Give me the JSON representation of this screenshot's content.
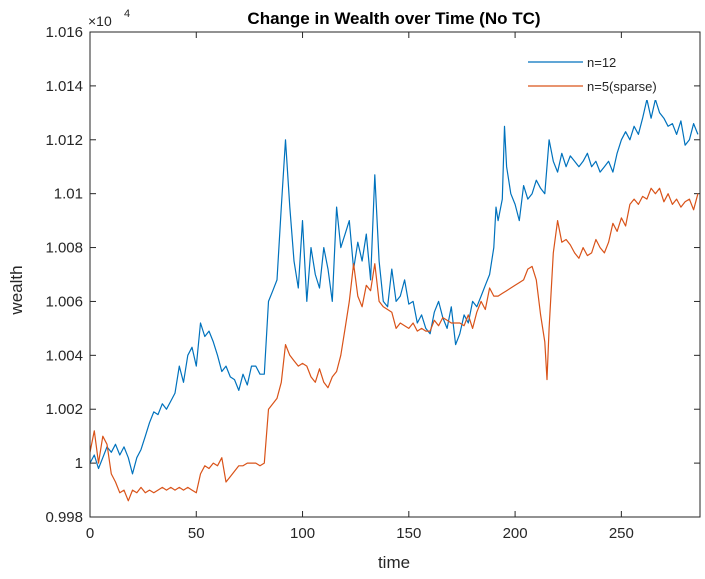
{
  "chart_data": {
    "type": "line",
    "title": "Change in Wealth over Time (No TC)",
    "xlabel": "time",
    "ylabel": "wealth",
    "y_exponent_label": "×10",
    "y_exponent_power": "4",
    "xlim": [
      0,
      287
    ],
    "ylim": [
      9980,
      10160
    ],
    "x_ticks": [
      0,
      50,
      100,
      150,
      200,
      250
    ],
    "x_tick_labels": [
      "0",
      "50",
      "100",
      "150",
      "200",
      "250"
    ],
    "y_ticks": [
      9980,
      10000,
      10020,
      10040,
      10060,
      10080,
      10100,
      10120,
      10140,
      10160
    ],
    "y_tick_labels": [
      "0.998",
      "1",
      "1.002",
      "1.004",
      "1.006",
      "1.008",
      "1.01",
      "1.012",
      "1.014",
      "1.016"
    ],
    "grid": false,
    "legend_position": "top-right",
    "series": [
      {
        "name": "n=12",
        "color": "#0072BD",
        "points": [
          [
            0,
            10000
          ],
          [
            2,
            10003
          ],
          [
            4,
            9998
          ],
          [
            6,
            10002
          ],
          [
            8,
            10006
          ],
          [
            10,
            10004
          ],
          [
            12,
            10007
          ],
          [
            14,
            10003
          ],
          [
            16,
            10006
          ],
          [
            18,
            10002
          ],
          [
            20,
            9996
          ],
          [
            22,
            10002
          ],
          [
            24,
            10005
          ],
          [
            26,
            10010
          ],
          [
            28,
            10015
          ],
          [
            30,
            10019
          ],
          [
            32,
            10018
          ],
          [
            34,
            10022
          ],
          [
            36,
            10020
          ],
          [
            38,
            10023
          ],
          [
            40,
            10026
          ],
          [
            42,
            10036
          ],
          [
            44,
            10030
          ],
          [
            46,
            10040
          ],
          [
            48,
            10043
          ],
          [
            50,
            10036
          ],
          [
            52,
            10052
          ],
          [
            54,
            10047
          ],
          [
            56,
            10049
          ],
          [
            58,
            10045
          ],
          [
            60,
            10040
          ],
          [
            62,
            10034
          ],
          [
            64,
            10036
          ],
          [
            66,
            10032
          ],
          [
            68,
            10031
          ],
          [
            70,
            10027
          ],
          [
            72,
            10033
          ],
          [
            74,
            10029
          ],
          [
            76,
            10036
          ],
          [
            78,
            10036
          ],
          [
            80,
            10033
          ],
          [
            82,
            10033
          ],
          [
            84,
            10060
          ],
          [
            86,
            10064
          ],
          [
            88,
            10068
          ],
          [
            90,
            10095
          ],
          [
            92,
            10120
          ],
          [
            94,
            10095
          ],
          [
            96,
            10075
          ],
          [
            98,
            10065
          ],
          [
            100,
            10090
          ],
          [
            102,
            10060
          ],
          [
            104,
            10080
          ],
          [
            106,
            10070
          ],
          [
            108,
            10065
          ],
          [
            110,
            10080
          ],
          [
            112,
            10072
          ],
          [
            114,
            10060
          ],
          [
            116,
            10095
          ],
          [
            118,
            10080
          ],
          [
            120,
            10085
          ],
          [
            122,
            10090
          ],
          [
            124,
            10072
          ],
          [
            126,
            10082
          ],
          [
            128,
            10075
          ],
          [
            130,
            10085
          ],
          [
            132,
            10068
          ],
          [
            134,
            10107
          ],
          [
            136,
            10075
          ],
          [
            138,
            10060
          ],
          [
            140,
            10058
          ],
          [
            142,
            10072
          ],
          [
            144,
            10060
          ],
          [
            146,
            10062
          ],
          [
            148,
            10068
          ],
          [
            150,
            10059
          ],
          [
            152,
            10060
          ],
          [
            154,
            10052
          ],
          [
            156,
            10055
          ],
          [
            158,
            10050
          ],
          [
            160,
            10048
          ],
          [
            162,
            10056
          ],
          [
            164,
            10060
          ],
          [
            166,
            10054
          ],
          [
            168,
            10050
          ],
          [
            170,
            10058
          ],
          [
            172,
            10044
          ],
          [
            174,
            10048
          ],
          [
            176,
            10055
          ],
          [
            178,
            10052
          ],
          [
            180,
            10060
          ],
          [
            182,
            10058
          ],
          [
            184,
            10062
          ],
          [
            186,
            10066
          ],
          [
            188,
            10070
          ],
          [
            190,
            10080
          ],
          [
            191,
            10095
          ],
          [
            192,
            10090
          ],
          [
            194,
            10098
          ],
          [
            195,
            10125
          ],
          [
            196,
            10110
          ],
          [
            198,
            10100
          ],
          [
            200,
            10096
          ],
          [
            202,
            10090
          ],
          [
            204,
            10103
          ],
          [
            206,
            10098
          ],
          [
            208,
            10100
          ],
          [
            210,
            10105
          ],
          [
            212,
            10102
          ],
          [
            214,
            10100
          ],
          [
            216,
            10120
          ],
          [
            218,
            10112
          ],
          [
            220,
            10108
          ],
          [
            222,
            10115
          ],
          [
            224,
            10110
          ],
          [
            226,
            10114
          ],
          [
            228,
            10112
          ],
          [
            230,
            10110
          ],
          [
            232,
            10112
          ],
          [
            234,
            10115
          ],
          [
            236,
            10110
          ],
          [
            238,
            10112
          ],
          [
            240,
            10108
          ],
          [
            242,
            10110
          ],
          [
            244,
            10112
          ],
          [
            246,
            10108
          ],
          [
            248,
            10115
          ],
          [
            250,
            10120
          ],
          [
            252,
            10123
          ],
          [
            254,
            10120
          ],
          [
            256,
            10125
          ],
          [
            258,
            10122
          ],
          [
            260,
            10128
          ],
          [
            262,
            10135
          ],
          [
            264,
            10128
          ],
          [
            266,
            10135
          ],
          [
            268,
            10130
          ],
          [
            270,
            10128
          ],
          [
            272,
            10125
          ],
          [
            274,
            10126
          ],
          [
            276,
            10122
          ],
          [
            278,
            10127
          ],
          [
            280,
            10118
          ],
          [
            282,
            10120
          ],
          [
            284,
            10126
          ],
          [
            286,
            10122
          ]
        ]
      },
      {
        "name": "n=5(sparse)",
        "color": "#D95319",
        "points": [
          [
            0,
            10004
          ],
          [
            2,
            10012
          ],
          [
            4,
            10000
          ],
          [
            6,
            10010
          ],
          [
            8,
            10007
          ],
          [
            10,
            9996
          ],
          [
            12,
            9993
          ],
          [
            14,
            9989
          ],
          [
            16,
            9990
          ],
          [
            18,
            9986
          ],
          [
            20,
            9990
          ],
          [
            22,
            9989
          ],
          [
            24,
            9991
          ],
          [
            26,
            9989
          ],
          [
            28,
            9990
          ],
          [
            30,
            9989
          ],
          [
            32,
            9990
          ],
          [
            34,
            9991
          ],
          [
            36,
            9990
          ],
          [
            38,
            9991
          ],
          [
            40,
            9990
          ],
          [
            42,
            9991
          ],
          [
            44,
            9990
          ],
          [
            46,
            9991
          ],
          [
            48,
            9990
          ],
          [
            50,
            9989
          ],
          [
            52,
            9996
          ],
          [
            54,
            9999
          ],
          [
            56,
            9998
          ],
          [
            58,
            10000
          ],
          [
            60,
            9999
          ],
          [
            62,
            10002
          ],
          [
            64,
            9993
          ],
          [
            66,
            9995
          ],
          [
            68,
            9997
          ],
          [
            70,
            9999
          ],
          [
            72,
            9999
          ],
          [
            74,
            10000
          ],
          [
            76,
            10000
          ],
          [
            78,
            10000
          ],
          [
            80,
            9999
          ],
          [
            82,
            10000
          ],
          [
            84,
            10020
          ],
          [
            86,
            10022
          ],
          [
            88,
            10024
          ],
          [
            90,
            10030
          ],
          [
            92,
            10044
          ],
          [
            94,
            10040
          ],
          [
            96,
            10038
          ],
          [
            98,
            10036
          ],
          [
            100,
            10037
          ],
          [
            102,
            10036
          ],
          [
            104,
            10032
          ],
          [
            106,
            10030
          ],
          [
            108,
            10035
          ],
          [
            110,
            10030
          ],
          [
            112,
            10028
          ],
          [
            114,
            10032
          ],
          [
            116,
            10034
          ],
          [
            118,
            10040
          ],
          [
            120,
            10050
          ],
          [
            122,
            10060
          ],
          [
            124,
            10074
          ],
          [
            126,
            10062
          ],
          [
            128,
            10058
          ],
          [
            130,
            10066
          ],
          [
            132,
            10064
          ],
          [
            134,
            10074
          ],
          [
            136,
            10060
          ],
          [
            138,
            10058
          ],
          [
            140,
            10057
          ],
          [
            142,
            10056
          ],
          [
            144,
            10050
          ],
          [
            146,
            10052
          ],
          [
            148,
            10051
          ],
          [
            150,
            10050
          ],
          [
            152,
            10052
          ],
          [
            154,
            10049
          ],
          [
            156,
            10050
          ],
          [
            158,
            10049
          ],
          [
            160,
            10049
          ],
          [
            162,
            10053
          ],
          [
            164,
            10051
          ],
          [
            166,
            10054
          ],
          [
            168,
            10053
          ],
          [
            170,
            10052
          ],
          [
            172,
            10052
          ],
          [
            174,
            10052
          ],
          [
            176,
            10051
          ],
          [
            178,
            10055
          ],
          [
            180,
            10050
          ],
          [
            182,
            10056
          ],
          [
            184,
            10060
          ],
          [
            186,
            10057
          ],
          [
            188,
            10065
          ],
          [
            190,
            10062
          ],
          [
            192,
            10062
          ],
          [
            194,
            10063
          ],
          [
            196,
            10064
          ],
          [
            198,
            10065
          ],
          [
            200,
            10066
          ],
          [
            202,
            10067
          ],
          [
            204,
            10068
          ],
          [
            206,
            10072
          ],
          [
            208,
            10073
          ],
          [
            210,
            10068
          ],
          [
            212,
            10055
          ],
          [
            214,
            10045
          ],
          [
            215,
            10031
          ],
          [
            216,
            10050
          ],
          [
            218,
            10078
          ],
          [
            220,
            10090
          ],
          [
            222,
            10082
          ],
          [
            224,
            10083
          ],
          [
            226,
            10081
          ],
          [
            228,
            10078
          ],
          [
            230,
            10076
          ],
          [
            232,
            10080
          ],
          [
            234,
            10077
          ],
          [
            236,
            10078
          ],
          [
            238,
            10083
          ],
          [
            240,
            10080
          ],
          [
            242,
            10078
          ],
          [
            244,
            10082
          ],
          [
            246,
            10089
          ],
          [
            248,
            10086
          ],
          [
            250,
            10091
          ],
          [
            252,
            10088
          ],
          [
            254,
            10096
          ],
          [
            256,
            10098
          ],
          [
            258,
            10096
          ],
          [
            260,
            10099
          ],
          [
            262,
            10098
          ],
          [
            264,
            10102
          ],
          [
            266,
            10100
          ],
          [
            268,
            10102
          ],
          [
            270,
            10097
          ],
          [
            272,
            10100
          ],
          [
            274,
            10096
          ],
          [
            276,
            10098
          ],
          [
            278,
            10095
          ],
          [
            280,
            10097
          ],
          [
            282,
            10098
          ],
          [
            284,
            10094
          ],
          [
            286,
            10100
          ]
        ]
      }
    ]
  }
}
